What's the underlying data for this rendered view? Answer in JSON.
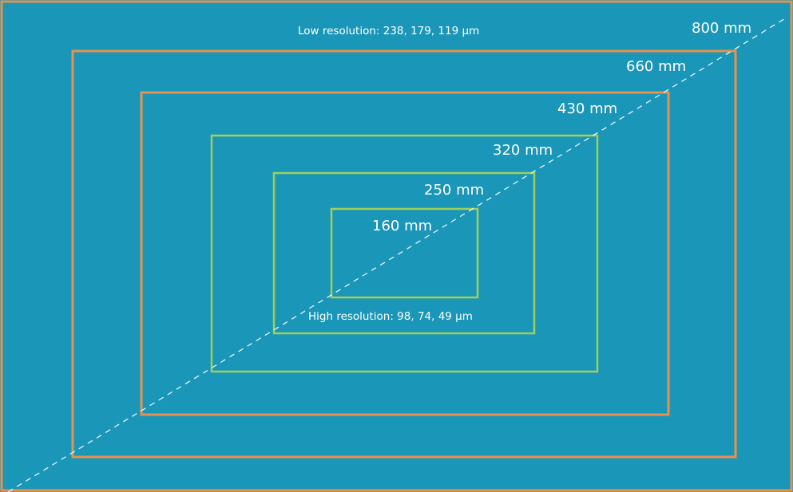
{
  "colors": {
    "background": "#1a96b8",
    "outer_border": "#e8924b",
    "orange_frame": "#e8924b",
    "green_frame": "#9fcf5a",
    "diagonal": "#e9f4f8",
    "text": "#ffffff"
  },
  "resolution_notes": {
    "low": "Low resolution: 238, 179, 119 µm",
    "high": "High resolution: 98, 74, 49 µm"
  },
  "fields_of_view": [
    {
      "label": "800 mm",
      "frame": "outer-border"
    },
    {
      "label": "660 mm",
      "frame": "orange"
    },
    {
      "label": "430 mm",
      "frame": "orange"
    },
    {
      "label": "320 mm",
      "frame": "green"
    },
    {
      "label": "250 mm",
      "frame": "green"
    },
    {
      "label": "160 mm",
      "frame": "green"
    }
  ]
}
